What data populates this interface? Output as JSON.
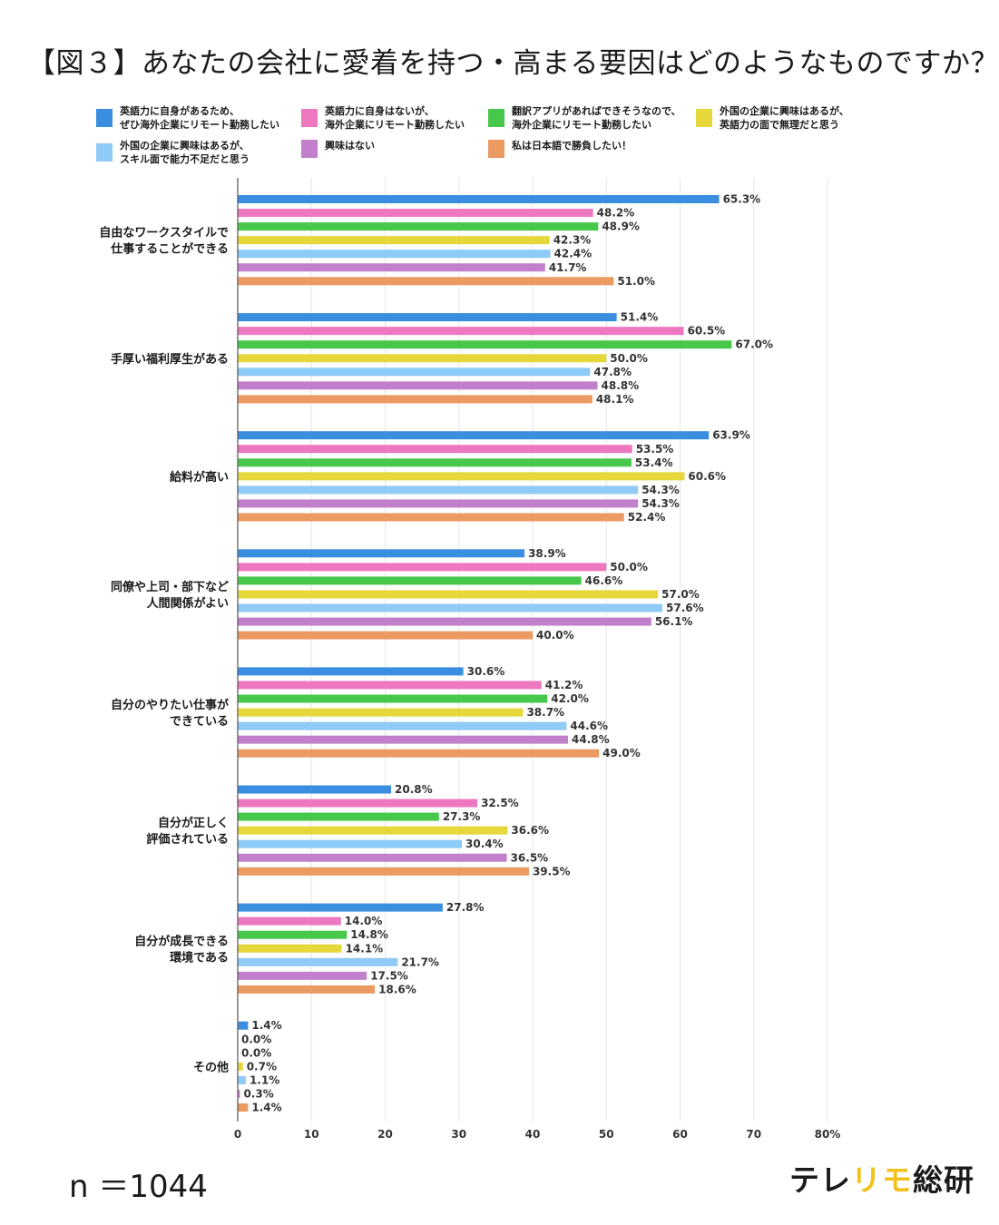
{
  "title": "【図３】あなたの会社に愛着を持つ・高まる要因はどのようなものですか？",
  "sample_size": "n ＝1044",
  "logo": {
    "part1": "テレ",
    "accent": "リモ",
    "part2": "総研",
    "accent_color": "#f2c21b"
  },
  "chart_data": {
    "type": "bar",
    "orientation": "horizontal",
    "title": "【図３】あなたの会社に愛着を持つ・高まる要因はどのようなものですか？",
    "xlim": [
      0,
      80
    ],
    "x_ticks": [
      "0",
      "10",
      "20",
      "30",
      "40",
      "50",
      "60",
      "70",
      "80%"
    ],
    "grid": true,
    "legend_position": "top",
    "categories": [
      "自由なワークスタイルで\n仕事することができる",
      "手厚い福利厚生がある",
      "給料が高い",
      "同僚や上司・部下など\n人間関係がよい",
      "自分のやりたい仕事が\nできている",
      "自分が正しく\n評価されている",
      "自分が成長できる\n環境である",
      "その他"
    ],
    "series": [
      {
        "name": "英語力に自身があるため、\nぜひ海外企業にリモート勤務したい",
        "color": "#3a8ee0",
        "values": [
          65.3,
          51.4,
          63.9,
          38.9,
          30.6,
          20.8,
          27.8,
          1.4
        ],
        "labels": [
          "65.3%",
          "51.4%",
          "63.9%",
          "38.9%",
          "30.6%",
          "20.8%",
          "27.8%",
          "1.4%"
        ]
      },
      {
        "name": "英語力に自身はないが、\n海外企業にリモート勤務したい",
        "color": "#ee78c0",
        "values": [
          48.2,
          60.5,
          53.5,
          50.0,
          41.2,
          32.5,
          14.0,
          0.0
        ],
        "labels": [
          "48.2%",
          "60.5%",
          "53.5%",
          "50.0%",
          "41.2%",
          "32.5%",
          "14.0%",
          "0.0%"
        ]
      },
      {
        "name": "翻訳アプリがあればできそうなので、\n海外企業にリモート勤務したい",
        "color": "#47c84a",
        "values": [
          48.9,
          67.0,
          53.4,
          46.6,
          42.0,
          27.3,
          14.8,
          0.0
        ],
        "labels": [
          "48.9%",
          "67.0%",
          "53.4%",
          "46.6%",
          "42.0%",
          "27.3%",
          "14.8%",
          "0.0%"
        ]
      },
      {
        "name": "外国の企業に興味はあるが、\n英語力の面で無理だと思う",
        "color": "#e6d83a",
        "values": [
          42.3,
          50.0,
          60.6,
          57.0,
          38.7,
          36.6,
          14.1,
          0.7
        ],
        "labels": [
          "42.3%",
          "50.0%",
          "60.6%",
          "57.0%",
          "38.7%",
          "36.6%",
          "14.1%",
          "0.7%"
        ]
      },
      {
        "name": "外国の企業に興味はあるが、\nスキル面で能力不足だと思う",
        "color": "#8ecbf7",
        "values": [
          42.4,
          47.8,
          54.3,
          57.6,
          44.6,
          30.4,
          21.7,
          1.1
        ],
        "labels": [
          "42.4%",
          "47.8%",
          "54.3%",
          "57.6%",
          "44.6%",
          "30.4%",
          "21.7%",
          "1.1%"
        ]
      },
      {
        "name": "興味はない",
        "color": "#c280cc",
        "values": [
          41.7,
          48.8,
          54.3,
          56.1,
          44.8,
          36.5,
          17.5,
          0.3
        ],
        "labels": [
          "41.7%",
          "48.8%",
          "54.3%",
          "56.1%",
          "44.8%",
          "36.5%",
          "17.5%",
          "0.3%"
        ]
      },
      {
        "name": "私は日本語で勝負したい！",
        "color": "#eb9a62",
        "values": [
          51.0,
          48.1,
          52.4,
          40.0,
          49.0,
          39.5,
          18.6,
          1.4
        ],
        "labels": [
          "51.0%",
          "48.1%",
          "52.4%",
          "40.0%",
          "49.0%",
          "39.5%",
          "18.6%",
          "1.4%"
        ]
      }
    ]
  }
}
